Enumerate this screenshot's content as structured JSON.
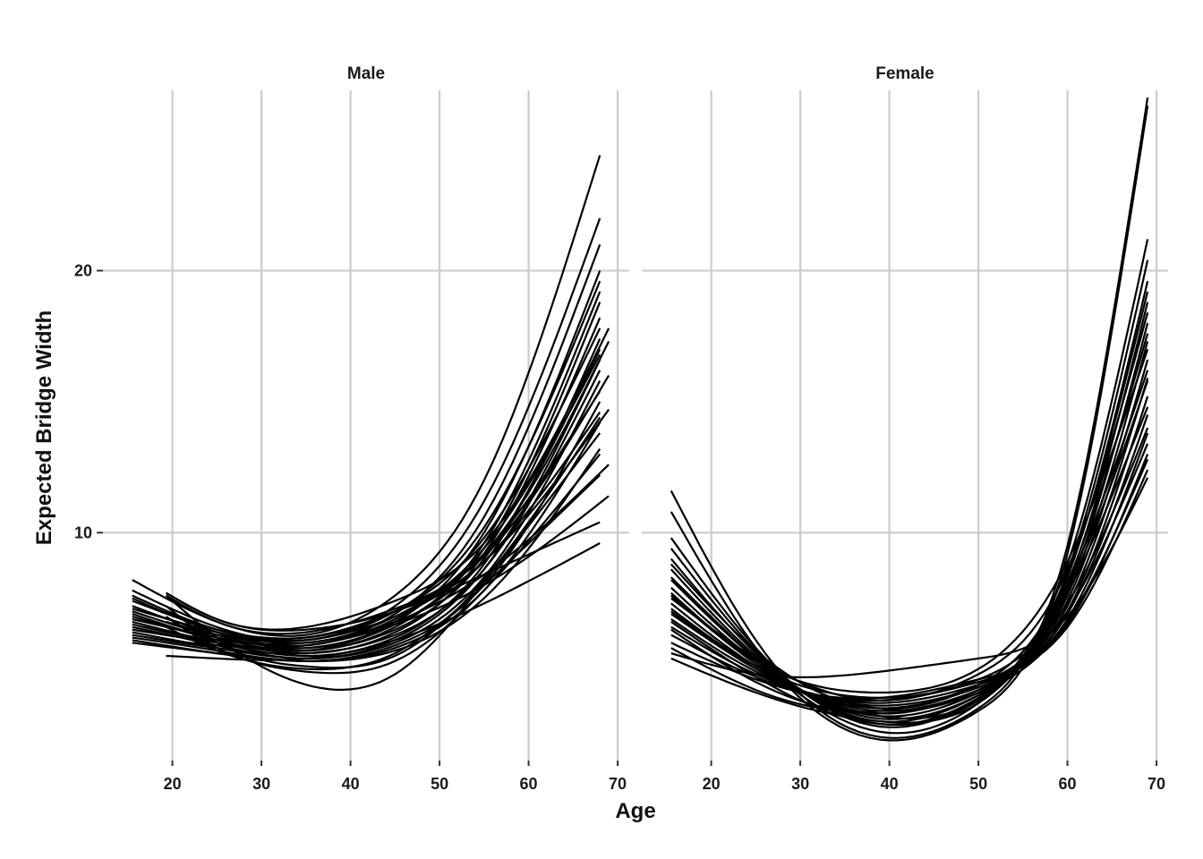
{
  "chart_data": {
    "type": "line",
    "xlabel": "Age",
    "ylabel": "Expected Bridge Width",
    "x_ticks": [
      20,
      30,
      40,
      50,
      60,
      70
    ],
    "y_ticks": [
      10,
      20
    ],
    "xlim": [
      12.2,
      71.3
    ],
    "ylim": [
      1.1,
      29.2
    ],
    "grid": true,
    "line_color": "#000000",
    "facets": [
      {
        "title": "Male",
        "series": [
          {
            "x": [
              15.5,
              25,
              35,
              45,
              55,
              68.0
            ],
            "y": [
              8.2,
              6.6,
              6.1,
              7.6,
              12.0,
              24.4
            ]
          },
          {
            "x": [
              15.5,
              25,
              35,
              45,
              55,
              68.0
            ],
            "y": [
              7.8,
              6.4,
              5.9,
              7.2,
              11.2,
              22.0
            ]
          },
          {
            "x": [
              15.5,
              25,
              35,
              45,
              55,
              68.0
            ],
            "y": [
              7.5,
              6.2,
              5.7,
              6.9,
              10.6,
              21.0
            ]
          },
          {
            "x": [
              15.5,
              25,
              35,
              45,
              55,
              68.0
            ],
            "y": [
              7.2,
              6.1,
              5.6,
              6.6,
              10.0,
              20.0
            ]
          },
          {
            "x": [
              15.5,
              25,
              35,
              45,
              55,
              68.0
            ],
            "y": [
              7.0,
              6.0,
              5.5,
              6.4,
              9.6,
              19.2
            ]
          },
          {
            "x": [
              15.5,
              25,
              35,
              45,
              55,
              68.0
            ],
            "y": [
              6.8,
              5.9,
              5.4,
              6.2,
              9.2,
              18.2
            ]
          },
          {
            "x": [
              15.5,
              25,
              35,
              45,
              55,
              68.0
            ],
            "y": [
              6.6,
              5.8,
              5.3,
              6.0,
              8.8,
              17.4
            ]
          },
          {
            "x": [
              15.5,
              25,
              35,
              45,
              55,
              68.0
            ],
            "y": [
              6.4,
              5.7,
              5.2,
              5.9,
              8.6,
              16.6
            ]
          },
          {
            "x": [
              15.5,
              25,
              35,
              45,
              55,
              68.0
            ],
            "y": [
              6.2,
              5.6,
              5.2,
              5.8,
              8.3,
              15.8
            ]
          },
          {
            "x": [
              15.5,
              25,
              35,
              45,
              55,
              68.0
            ],
            "y": [
              6.0,
              5.5,
              5.1,
              5.7,
              8.0,
              15.0
            ]
          },
          {
            "x": [
              15.5,
              25,
              35,
              45,
              55,
              68.0
            ],
            "y": [
              5.9,
              5.4,
              5.1,
              5.6,
              7.8,
              14.2
            ]
          },
          {
            "x": [
              15.5,
              25,
              35,
              45,
              55,
              68.0
            ],
            "y": [
              5.8,
              5.4,
              5.1,
              5.5,
              7.5,
              13.2
            ]
          },
          {
            "x": [
              15.5,
              25,
              35,
              45,
              55,
              68.0
            ],
            "y": [
              7.6,
              6.3,
              5.9,
              7.0,
              10.2,
              19.6
            ]
          },
          {
            "x": [
              15.5,
              25,
              35,
              45,
              55,
              68.0
            ],
            "y": [
              6.9,
              5.9,
              5.5,
              6.5,
              9.4,
              18.8
            ]
          },
          {
            "x": [
              15.5,
              25,
              35,
              45,
              55,
              68.0
            ],
            "y": [
              6.5,
              5.8,
              5.5,
              6.3,
              9.0,
              17.0
            ]
          },
          {
            "x": [
              15.5,
              25,
              35,
              45,
              55,
              68.0
            ],
            "y": [
              6.1,
              5.6,
              5.4,
              6.1,
              8.6,
              16.2
            ]
          },
          {
            "x": [
              15.5,
              25,
              35,
              45,
              55,
              68.0
            ],
            "y": [
              7.4,
              6.3,
              6.0,
              7.0,
              9.8,
              17.8
            ]
          },
          {
            "x": [
              15.5,
              25,
              35,
              45,
              55,
              68.0
            ],
            "y": [
              7.1,
              6.2,
              5.8,
              6.8,
              9.4,
              16.8
            ]
          },
          {
            "x": [
              15.5,
              25,
              35,
              45,
              55,
              68.0
            ],
            "y": [
              6.7,
              6.0,
              5.7,
              6.7,
              9.2,
              15.4
            ]
          },
          {
            "x": [
              15.5,
              25,
              35,
              45,
              55,
              68.0
            ],
            "y": [
              6.3,
              5.8,
              5.6,
              6.5,
              8.9,
              14.6
            ]
          },
          {
            "x": [
              19.3,
              25,
              35,
              45,
              55,
              69.0
            ],
            "y": [
              7.7,
              6.7,
              6.4,
              7.4,
              9.6,
              17.8
            ]
          },
          {
            "x": [
              19.3,
              25,
              35,
              45,
              55,
              69.0
            ],
            "y": [
              7.6,
              6.6,
              6.2,
              7.1,
              9.2,
              17.3
            ]
          },
          {
            "x": [
              19.3,
              25,
              35,
              45,
              55,
              69.0
            ],
            "y": [
              7.0,
              6.3,
              6.0,
              7.0,
              9.1,
              16.0
            ]
          },
          {
            "x": [
              19.3,
              25,
              35,
              45,
              55,
              69.0
            ],
            "y": [
              6.6,
              6.1,
              5.9,
              6.8,
              8.9,
              14.7
            ]
          },
          {
            "x": [
              19.3,
              25,
              35,
              45,
              55,
              69.0
            ],
            "y": [
              6.2,
              5.9,
              5.8,
              6.6,
              8.4,
              12.6
            ]
          },
          {
            "x": [
              19.3,
              25,
              35,
              45,
              55,
              69.0
            ],
            "y": [
              5.9,
              5.7,
              5.7,
              6.5,
              8.0,
              11.4
            ]
          },
          {
            "x": [
              19.3,
              25,
              35,
              45,
              55,
              68.0
            ],
            "y": [
              7.7,
              6.7,
              6.3,
              7.0,
              8.4,
              10.4
            ]
          },
          {
            "x": [
              19.3,
              25,
              35,
              45,
              55,
              68.0
            ],
            "y": [
              5.3,
              5.2,
              5.2,
              5.9,
              7.3,
              9.6
            ]
          },
          {
            "x": [
              19.3,
              25,
              35,
              45,
              55,
              68.0
            ],
            "y": [
              7.6,
              6.0,
              4.2,
              4.6,
              8.1,
              13.8
            ]
          },
          {
            "x": [
              19.3,
              25,
              35,
              45,
              55,
              68.0
            ],
            "y": [
              7.2,
              5.8,
              4.9,
              5.3,
              8.2,
              14.4
            ]
          },
          {
            "x": [
              19.3,
              25,
              35,
              45,
              55,
              68.0
            ],
            "y": [
              6.8,
              5.6,
              4.7,
              5.1,
              7.8,
              13.0
            ]
          },
          {
            "x": [
              19.3,
              25,
              35,
              45,
              55,
              68.0
            ],
            "y": [
              6.4,
              5.5,
              4.8,
              5.4,
              8.0,
              12.2
            ]
          }
        ]
      },
      {
        "title": "Female",
        "series": [
          {
            "x": [
              15.5,
              25,
              39,
              50,
              60,
              69.0
            ],
            "y": [
              11.6,
              5.9,
              2.2,
              3.3,
              9.5,
              26.6
            ]
          },
          {
            "x": [
              15.5,
              25,
              39,
              50,
              60,
              69.0
            ],
            "y": [
              10.8,
              5.6,
              2.1,
              3.2,
              9.2,
              26.3
            ]
          },
          {
            "x": [
              15.5,
              25,
              39,
              50,
              60,
              69.0
            ],
            "y": [
              9.8,
              5.6,
              2.6,
              3.7,
              8.8,
              21.2
            ]
          },
          {
            "x": [
              15.5,
              25,
              39,
              50,
              60,
              69.0
            ],
            "y": [
              9.4,
              5.5,
              2.7,
              3.7,
              8.5,
              20.4
            ]
          },
          {
            "x": [
              15.5,
              25,
              39,
              50,
              60,
              69.0
            ],
            "y": [
              9.0,
              5.4,
              2.8,
              3.8,
              8.3,
              19.6
            ]
          },
          {
            "x": [
              15.5,
              25,
              39,
              50,
              60,
              69.0
            ],
            "y": [
              8.6,
              5.3,
              2.9,
              3.8,
              8.0,
              18.8
            ]
          },
          {
            "x": [
              15.5,
              25,
              39,
              50,
              60,
              69.0
            ],
            "y": [
              8.2,
              5.2,
              3.0,
              3.9,
              7.8,
              18.0
            ]
          },
          {
            "x": [
              15.5,
              25,
              39,
              50,
              60,
              69.0
            ],
            "y": [
              7.9,
              5.1,
              3.1,
              4.0,
              7.6,
              17.3
            ]
          },
          {
            "x": [
              15.5,
              25,
              39,
              50,
              60,
              69.0
            ],
            "y": [
              7.6,
              5.0,
              3.2,
              4.0,
              7.4,
              16.6
            ]
          },
          {
            "x": [
              15.5,
              25,
              39,
              50,
              60,
              69.0
            ],
            "y": [
              7.3,
              4.9,
              3.3,
              4.1,
              7.2,
              15.9
            ]
          },
          {
            "x": [
              15.5,
              25,
              39,
              50,
              60,
              69.0
            ],
            "y": [
              7.0,
              4.8,
              3.4,
              4.1,
              7.0,
              15.2
            ]
          },
          {
            "x": [
              15.5,
              25,
              39,
              50,
              60,
              69.0
            ],
            "y": [
              6.7,
              4.7,
              3.5,
              4.2,
              6.9,
              14.5
            ]
          },
          {
            "x": [
              15.5,
              25,
              39,
              50,
              60,
              69.0
            ],
            "y": [
              6.4,
              4.6,
              3.6,
              4.3,
              6.7,
              13.8
            ]
          },
          {
            "x": [
              15.5,
              25,
              39,
              50,
              60,
              69.0
            ],
            "y": [
              6.1,
              4.5,
              3.6,
              4.3,
              6.5,
              13.0
            ]
          },
          {
            "x": [
              15.5,
              25,
              39,
              50,
              60,
              69.0
            ],
            "y": [
              5.8,
              4.4,
              3.7,
              4.4,
              6.4,
              12.4
            ]
          },
          {
            "x": [
              15.5,
              25,
              39,
              50,
              60,
              69.0
            ],
            "y": [
              5.4,
              4.6,
              4.7,
              5.2,
              6.8,
              12.1
            ]
          },
          {
            "x": [
              15.5,
              25,
              39,
              50,
              60,
              69.0
            ],
            "y": [
              5.2,
              3.9,
              2.8,
              3.5,
              7.7,
              14.8
            ]
          },
          {
            "x": [
              15.5,
              25,
              39,
              50,
              60,
              69.0
            ],
            "y": [
              6.6,
              4.5,
              2.7,
              3.6,
              7.8,
              15.8
            ]
          },
          {
            "x": [
              15.5,
              25,
              39,
              50,
              60,
              69.0
            ],
            "y": [
              6.9,
              4.8,
              3.0,
              3.6,
              8.1,
              17.6
            ]
          },
          {
            "x": [
              15.5,
              25,
              39,
              50,
              60,
              69.0
            ],
            "y": [
              7.5,
              5.2,
              3.6,
              4.6,
              8.6,
              18.4
            ]
          },
          {
            "x": [
              15.5,
              25,
              39,
              50,
              60,
              69.0
            ],
            "y": [
              8.3,
              5.2,
              2.4,
              3.5,
              8.0,
              16.2
            ]
          },
          {
            "x": [
              15.5,
              25,
              39,
              50,
              60,
              69.0
            ],
            "y": [
              5.6,
              4.0,
              3.2,
              4.2,
              7.0,
              13.4
            ]
          },
          {
            "x": [
              15.5,
              25,
              39,
              50,
              60,
              69.0
            ],
            "y": [
              6.3,
              4.3,
              3.1,
              3.9,
              6.6,
              12.8
            ]
          },
          {
            "x": [
              15.5,
              25,
              39,
              50,
              60,
              69.0
            ],
            "y": [
              7.1,
              4.9,
              3.7,
              4.4,
              7.3,
              14.0
            ]
          },
          {
            "x": [
              15.5,
              25,
              39,
              50,
              60,
              69.0
            ],
            "y": [
              8.8,
              5.5,
              3.3,
              4.2,
              8.4,
              19.2
            ]
          },
          {
            "x": [
              15.5,
              25,
              39,
              50,
              60,
              69.0
            ],
            "y": [
              7.7,
              5.1,
              3.9,
              4.8,
              8.9,
              17.0
            ]
          }
        ]
      }
    ]
  }
}
